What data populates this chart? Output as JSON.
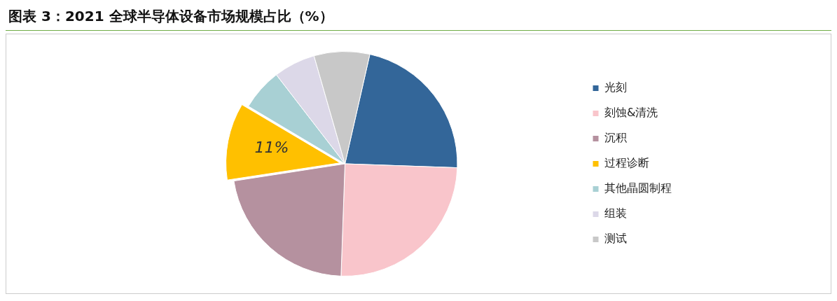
{
  "chart_data": {
    "type": "pie",
    "title": "图表 3：2021 全球半导体设备市场规模占比（%）",
    "categories": [
      "光刻",
      "刻蚀&清洗",
      "沉积",
      "过程诊断",
      "其他晶圆制程",
      "组装",
      "测试"
    ],
    "values": [
      22,
      25,
      22,
      11,
      6,
      6,
      8
    ],
    "colors": [
      "#336699",
      "#f9c5cb",
      "#b5919f",
      "#ffc000",
      "#a8d0d4",
      "#dcd8e8",
      "#c8c8c8"
    ],
    "value_labels": [
      null,
      null,
      null,
      "11%",
      null,
      null,
      null
    ],
    "legend": "right"
  }
}
